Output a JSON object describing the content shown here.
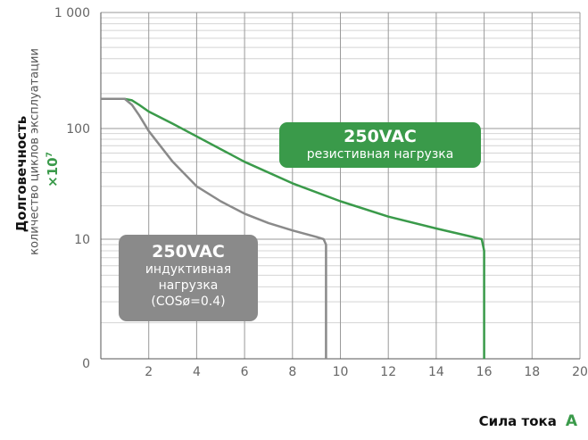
{
  "chart_data": {
    "type": "line",
    "xlabel": "Сила тока",
    "xunit": "A",
    "ylabel": "Долговечность",
    "ysublabel": "количество циклов эксплуатации",
    "yunit_base": "×10",
    "yunit_exp": "7",
    "y_scale": "log",
    "xlim": [
      0,
      20
    ],
    "y_ticks": [
      "1 000",
      "100",
      "10",
      "0"
    ],
    "x_ticks": [
      "2",
      "4",
      "6",
      "8",
      "10",
      "12",
      "14",
      "16",
      "18",
      "20"
    ],
    "grid": true,
    "series": [
      {
        "name": "резистивная нагрузка",
        "color": "#3a9a4a",
        "x": [
          0,
          1,
          1.3,
          1.6,
          2,
          3,
          4,
          6,
          8,
          10,
          12,
          14,
          15.5,
          15.9,
          16,
          16
        ],
        "y": [
          180,
          180,
          175,
          160,
          140,
          110,
          85,
          50,
          32,
          22,
          16,
          12.5,
          10.5,
          10,
          8,
          1
        ]
      },
      {
        "name": "индуктивная нагрузка (COSø=0.4)",
        "color": "#8a8a8a",
        "x": [
          0,
          1,
          1.3,
          1.6,
          2,
          3,
          4,
          5,
          6,
          7,
          8,
          9,
          9.3,
          9.4,
          9.4
        ],
        "y": [
          180,
          180,
          160,
          130,
          95,
          50,
          30,
          22,
          17,
          14,
          12,
          10.5,
          10,
          9,
          1
        ]
      }
    ],
    "annotations": [
      {
        "title": "250VAC",
        "lines": [
          "резистивная нагрузка"
        ],
        "color": "#3a9a4a"
      },
      {
        "title": "250VAC",
        "lines": [
          "индуктивная",
          "нагрузка",
          "(COSø=0.4)"
        ],
        "color": "#8a8a8a"
      }
    ]
  }
}
